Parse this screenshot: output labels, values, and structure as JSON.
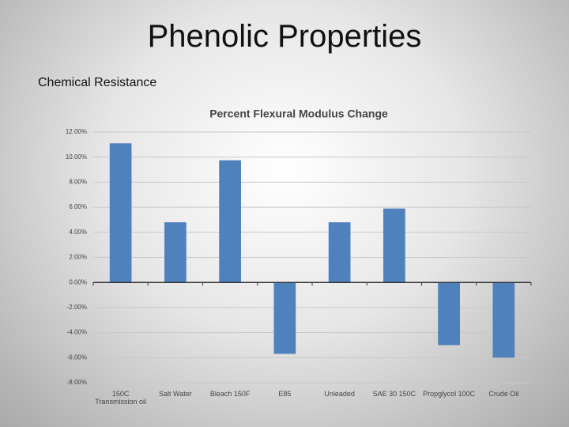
{
  "slide_title": "Phenolic Properties",
  "slide_subtitle": "Chemical Resistance",
  "chart_data": {
    "type": "bar",
    "title": "Percent Flexural Modulus Change",
    "categories": [
      "150C Transmission oil",
      "Salt Water",
      "Bleach 150F",
      "E85",
      "Unleaded",
      "SAE 30 150C",
      "Propglycol 100C",
      "Crude Oil"
    ],
    "values": [
      11.1,
      4.8,
      9.75,
      -5.7,
      4.8,
      5.9,
      -5.0,
      -6.0
    ],
    "color": "#4f81bd",
    "ylim": [
      -8,
      12
    ],
    "yticks": [
      {
        "value": -8,
        "label": "-8.00%"
      },
      {
        "value": -6,
        "label": "-6.00%"
      },
      {
        "value": -4,
        "label": "-4.00%"
      },
      {
        "value": -2,
        "label": "-2.00%"
      },
      {
        "value": 0,
        "label": "0.00%"
      },
      {
        "value": 2,
        "label": "2.00%"
      },
      {
        "value": 4,
        "label": "4.00%"
      },
      {
        "value": 6,
        "label": "6.00%"
      },
      {
        "value": 8,
        "label": "8.00%"
      },
      {
        "value": 10,
        "label": "10.00%"
      },
      {
        "value": 12,
        "label": "12.00%"
      }
    ],
    "grid": true
  }
}
